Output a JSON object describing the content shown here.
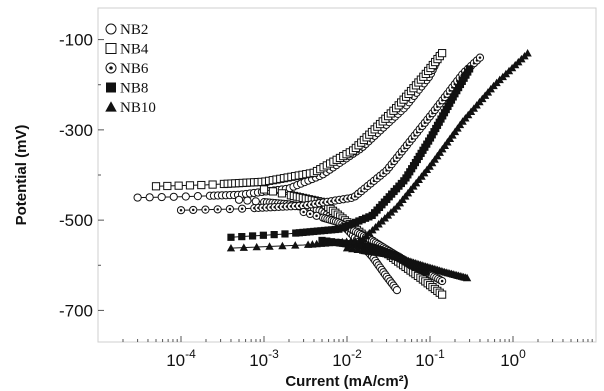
{
  "chart_data": {
    "type": "scatter",
    "title": "",
    "xlabel": "Current (mA/cm²)",
    "ylabel": "Potential (mV)",
    "x_scale": "log",
    "xlim": [
      1e-05,
      10
    ],
    "ylim": [
      -770,
      -30
    ],
    "x_ticks": [
      {
        "value": 0.0001,
        "label": "10",
        "exp": "-4"
      },
      {
        "value": 0.001,
        "label": "10",
        "exp": "-3"
      },
      {
        "value": 0.01,
        "label": "10",
        "exp": "-2"
      },
      {
        "value": 0.1,
        "label": "10",
        "exp": "-1"
      },
      {
        "value": 1,
        "label": "10",
        "exp": "0"
      }
    ],
    "y_ticks": [
      {
        "value": -100,
        "label": "-100"
      },
      {
        "value": -300,
        "label": "-300"
      },
      {
        "value": -500,
        "label": "-500"
      },
      {
        "value": -700,
        "label": "-700"
      }
    ],
    "grid": false,
    "legend_position": "top-left",
    "series": [
      {
        "name": "NB2",
        "marker": "open-circle",
        "corrosion_potential": -450,
        "corrosion_current": 0.005,
        "anodic": [
          [
            3e-05,
            -450
          ],
          [
            0.0001,
            -448
          ],
          [
            0.0005,
            -444
          ],
          [
            0.002,
            -430
          ],
          [
            0.005,
            -400
          ],
          [
            0.015,
            -340
          ],
          [
            0.05,
            -250
          ],
          [
            0.1,
            -180
          ],
          [
            0.13,
            -135
          ]
        ],
        "cathodic": [
          [
            0.0005,
            -455
          ],
          [
            0.002,
            -465
          ],
          [
            0.005,
            -480
          ],
          [
            0.01,
            -520
          ],
          [
            0.02,
            -580
          ],
          [
            0.03,
            -625
          ],
          [
            0.04,
            -655
          ]
        ]
      },
      {
        "name": "NB4",
        "marker": "open-square",
        "corrosion_potential": -425,
        "corrosion_current": 0.006,
        "anodic": [
          [
            5e-05,
            -425
          ],
          [
            0.0002,
            -422
          ],
          [
            0.001,
            -415
          ],
          [
            0.004,
            -395
          ],
          [
            0.012,
            -345
          ],
          [
            0.04,
            -250
          ],
          [
            0.09,
            -175
          ],
          [
            0.14,
            -130
          ]
        ],
        "cathodic": [
          [
            0.001,
            -432
          ],
          [
            0.005,
            -460
          ],
          [
            0.015,
            -530
          ],
          [
            0.04,
            -590
          ],
          [
            0.08,
            -630
          ],
          [
            0.14,
            -665
          ]
        ]
      },
      {
        "name": "NB6",
        "marker": "dotted-circle",
        "corrosion_potential": -478,
        "corrosion_current": 0.012,
        "anodic": [
          [
            0.0001,
            -478
          ],
          [
            0.0005,
            -475
          ],
          [
            0.003,
            -468
          ],
          [
            0.012,
            -450
          ],
          [
            0.03,
            -390
          ],
          [
            0.1,
            -270
          ],
          [
            0.25,
            -175
          ],
          [
            0.4,
            -140
          ]
        ],
        "cathodic": [
          [
            0.003,
            -482
          ],
          [
            0.008,
            -505
          ],
          [
            0.02,
            -545
          ],
          [
            0.05,
            -590
          ],
          [
            0.1,
            -620
          ],
          [
            0.14,
            -635
          ]
        ]
      },
      {
        "name": "NB8",
        "marker": "filled-square",
        "corrosion_potential": -540,
        "corrosion_current": 0.02,
        "anodic": [
          [
            0.0004,
            -538
          ],
          [
            0.002,
            -530
          ],
          [
            0.008,
            -520
          ],
          [
            0.02,
            -490
          ],
          [
            0.05,
            -410
          ],
          [
            0.1,
            -320
          ],
          [
            0.2,
            -220
          ],
          [
            0.3,
            -165
          ]
        ],
        "cathodic": [
          [
            0.005,
            -545
          ],
          [
            0.02,
            -560
          ],
          [
            0.04,
            -580
          ],
          [
            0.06,
            -600
          ],
          [
            0.09,
            -615
          ]
        ]
      },
      {
        "name": "NB10",
        "marker": "filled-triangle",
        "corrosion_potential": -560,
        "corrosion_current": 0.03,
        "anodic": [
          [
            0.0004,
            -562
          ],
          [
            0.003,
            -555
          ],
          [
            0.015,
            -545
          ],
          [
            0.04,
            -470
          ],
          [
            0.1,
            -380
          ],
          [
            0.25,
            -280
          ],
          [
            0.6,
            -200
          ],
          [
            1.5,
            -130
          ]
        ],
        "cathodic": [
          [
            0.01,
            -562
          ],
          [
            0.03,
            -575
          ],
          [
            0.08,
            -600
          ],
          [
            0.15,
            -615
          ],
          [
            0.28,
            -628
          ]
        ]
      }
    ]
  }
}
